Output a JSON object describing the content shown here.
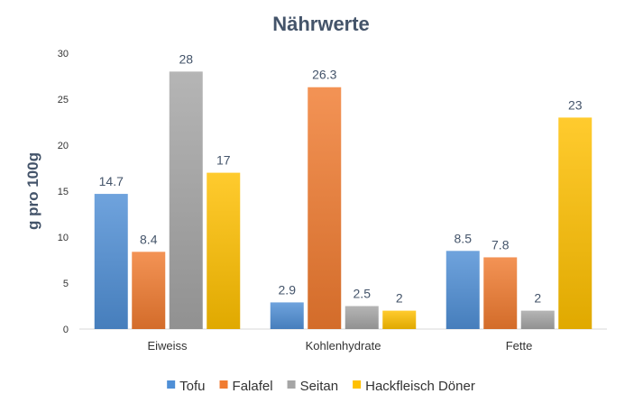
{
  "chart_data": {
    "type": "bar",
    "title": "Nährwerte",
    "ylabel": "g pro 100g",
    "xlabel": "",
    "categories": [
      "Eiweiss",
      "Kohlenhydrate",
      "Fette"
    ],
    "series": [
      {
        "name": "Tofu",
        "values": [
          14.7,
          2.9,
          8.5
        ],
        "color": "#4f8fd6"
      },
      {
        "name": "Falafel",
        "values": [
          8.4,
          26.3,
          7.8
        ],
        "color": "#f07b30"
      },
      {
        "name": "Seitan",
        "values": [
          28,
          2.5,
          2
        ],
        "color": "#a5a5a5"
      },
      {
        "name": "Hackfleisch Döner",
        "values": [
          17,
          2,
          23
        ],
        "color": "#ffc000"
      }
    ],
    "ylim": [
      0,
      30
    ],
    "yticks": [
      0,
      5,
      10,
      15,
      20,
      25,
      30
    ],
    "grid": "none",
    "legend_position": "bottom"
  }
}
